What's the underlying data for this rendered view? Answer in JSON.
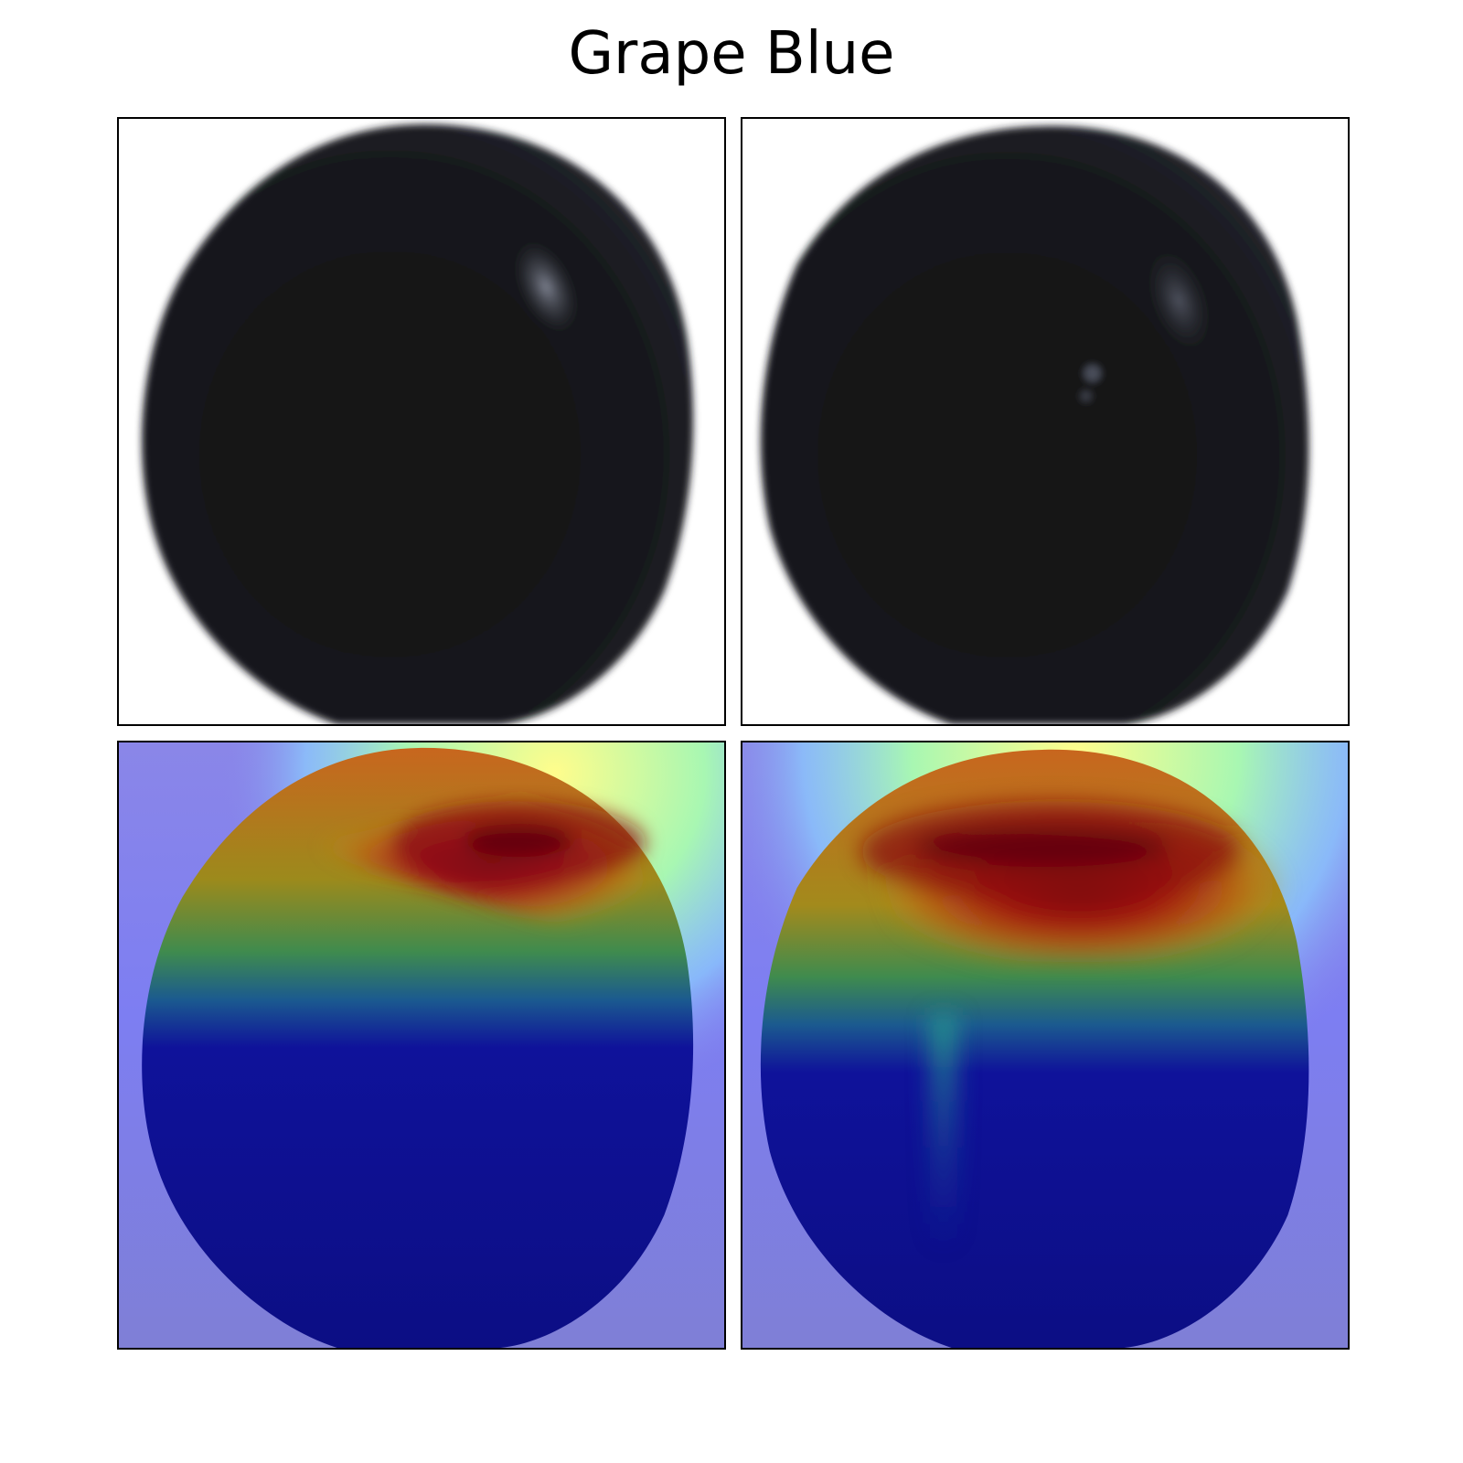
{
  "title": "Grape Blue",
  "panels": [
    {
      "row": "original",
      "icon": "grape-photo"
    },
    {
      "row": "original",
      "icon": "grape-photo"
    },
    {
      "row": "heatmap-overlay",
      "icon": "grape-heatmap"
    },
    {
      "row": "heatmap-overlay",
      "icon": "grape-heatmap"
    }
  ],
  "colors": {
    "grape": "#131416",
    "heat_hot": "#7a0a12",
    "heat_cold": "#0d0e8a",
    "heat_background": "#7f7fd6"
  }
}
